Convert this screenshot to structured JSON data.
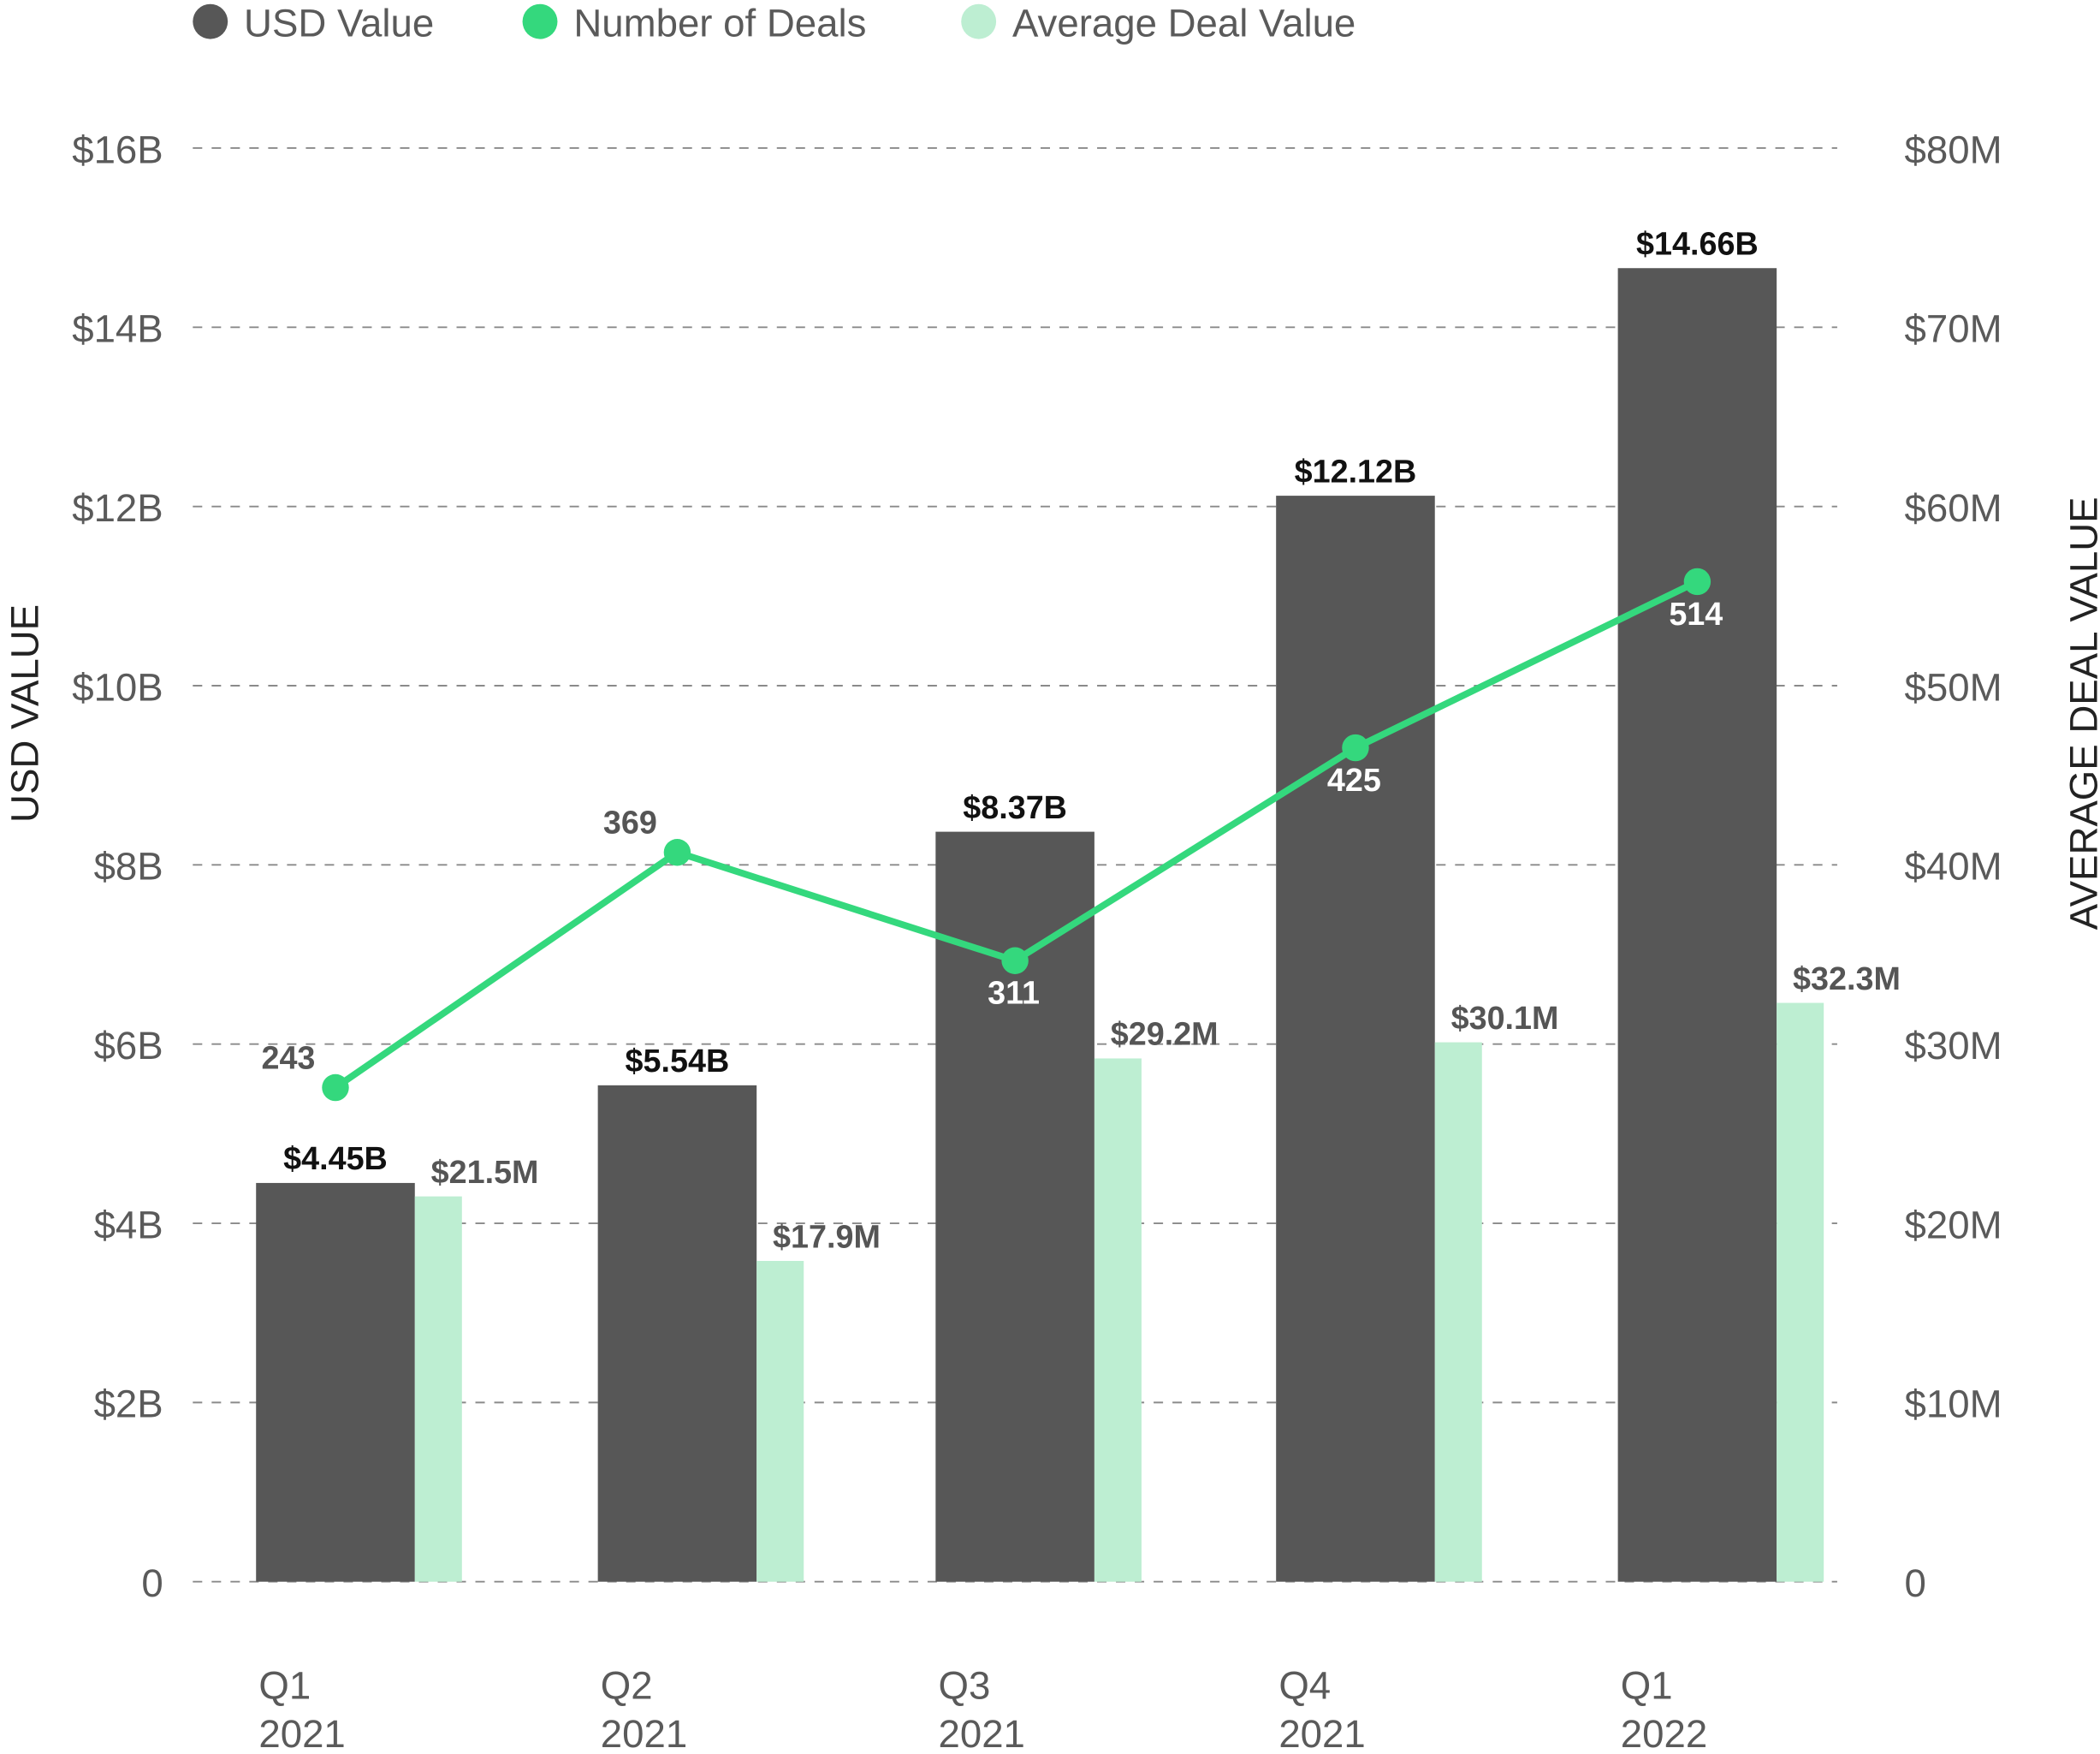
{
  "chart_data": {
    "type": "bar",
    "categories": [
      [
        "Q1",
        "2021"
      ],
      [
        "Q2",
        "2021"
      ],
      [
        "Q3",
        "2021"
      ],
      [
        "Q4",
        "2021"
      ],
      [
        "Q1",
        "2022"
      ]
    ],
    "legend": {
      "position": "top-left",
      "items": [
        {
          "label": "USD Value",
          "color": "#575757"
        },
        {
          "label": "Number of Deals",
          "color": "#34d87d"
        },
        {
          "label": "Average Deal Value",
          "color": "#bdeed2"
        }
      ]
    },
    "y_left": {
      "label": "USD VALUE",
      "range": [
        0,
        16
      ],
      "ticks": [
        "0",
        "$2B",
        "$4B",
        "$6B",
        "$8B",
        "$10B",
        "$12B",
        "$14B",
        "$16B"
      ]
    },
    "y_right": {
      "label": "AVERAGE DEAL VALUE",
      "range": [
        0,
        80
      ],
      "ticks": [
        "0",
        "$10M",
        "$20M",
        "$30M",
        "$40M",
        "$50M",
        "$60M",
        "$70M",
        "$80M"
      ]
    },
    "grid": true,
    "series": [
      {
        "name": "USD Value",
        "type": "bar",
        "axis": "left",
        "values": [
          4.45,
          5.54,
          8.37,
          12.12,
          14.66
        ],
        "labels": [
          "$4.45B",
          "$5.54B",
          "$8.37B",
          "$12.12B",
          "$14.66B"
        ],
        "color": "#575757"
      },
      {
        "name": "Average Deal Value",
        "type": "bar",
        "axis": "right",
        "values": [
          21.5,
          17.9,
          29.2,
          30.1,
          32.3
        ],
        "labels": [
          "$21.5M",
          "$17.9M",
          "$29.2M",
          "$30.1M",
          "$32.3M"
        ],
        "color": "#bdeed2"
      },
      {
        "name": "Number of Deals",
        "type": "line",
        "values": [
          243,
          369,
          311,
          425,
          514
        ],
        "labels": [
          "243",
          "369",
          "311",
          "425",
          "514"
        ],
        "color": "#34d87d"
      }
    ]
  }
}
